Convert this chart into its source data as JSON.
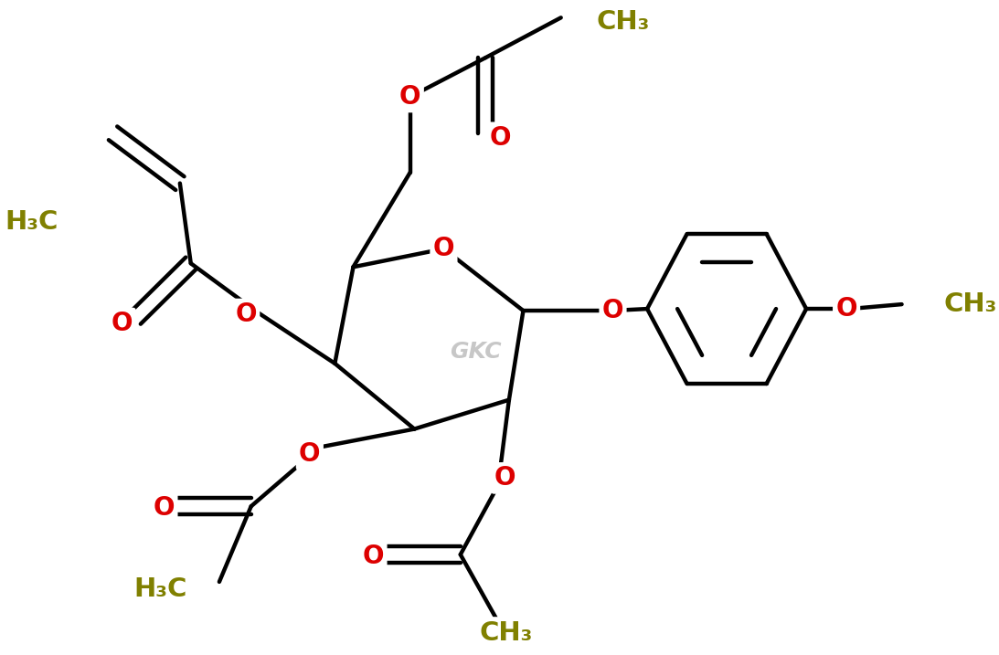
{
  "bond_color": "#000000",
  "oxygen_color": "#dd0000",
  "methyl_color": "#808000",
  "bg_color": "#ffffff",
  "watermark_color": "#b0b0b0",
  "line_width": 3.2,
  "figsize": [
    10.93,
    7.17
  ],
  "dpi": 100,
  "xlim": [
    0,
    10.93
  ],
  "ylim": [
    0,
    7.17
  ],
  "ring_O_label": "O",
  "watermark": "GKC"
}
